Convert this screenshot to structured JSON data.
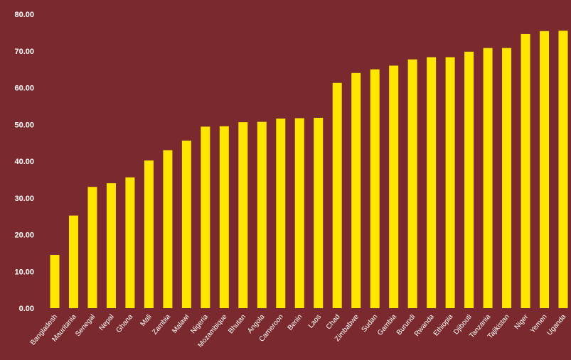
{
  "chart_data": {
    "type": "bar",
    "title": "",
    "xlabel": "",
    "ylabel": "",
    "ylim": [
      0,
      80
    ],
    "yticks": [
      "0.00",
      "10.00",
      "20.00",
      "30.00",
      "40.00",
      "50.00",
      "60.00",
      "70.00",
      "80.00"
    ],
    "grid": false,
    "legend": "none",
    "categories": [
      "Bangladesh",
      "Mauritania",
      "Senegal",
      "Nepal",
      "Ghana",
      "Mali",
      "Zambia",
      "Malawi",
      "Nigeria",
      "Mozambique",
      "Bhutan",
      "Angola",
      "Cameroon",
      "Benin",
      "Laos",
      "Chad",
      "Zimbabwe",
      "Sudan",
      "Gambia",
      "Burundi",
      "Rwanda",
      "Ethiopia",
      "Djibouti",
      "Tanzania",
      "Tajikistan",
      "Niger",
      "Yemen",
      "Uganda"
    ],
    "values": [
      14.5,
      25.2,
      33.0,
      34.0,
      35.6,
      40.2,
      43.0,
      45.6,
      49.4,
      49.5,
      50.6,
      50.7,
      51.6,
      51.7,
      51.8,
      61.3,
      64.0,
      65.0,
      66.0,
      67.7,
      68.3,
      68.3,
      69.8,
      70.8,
      70.8,
      74.6,
      75.4,
      75.5
    ],
    "bar_color": "#ffe600",
    "background": "#7a2a2e",
    "text_color": "#ffffff"
  }
}
